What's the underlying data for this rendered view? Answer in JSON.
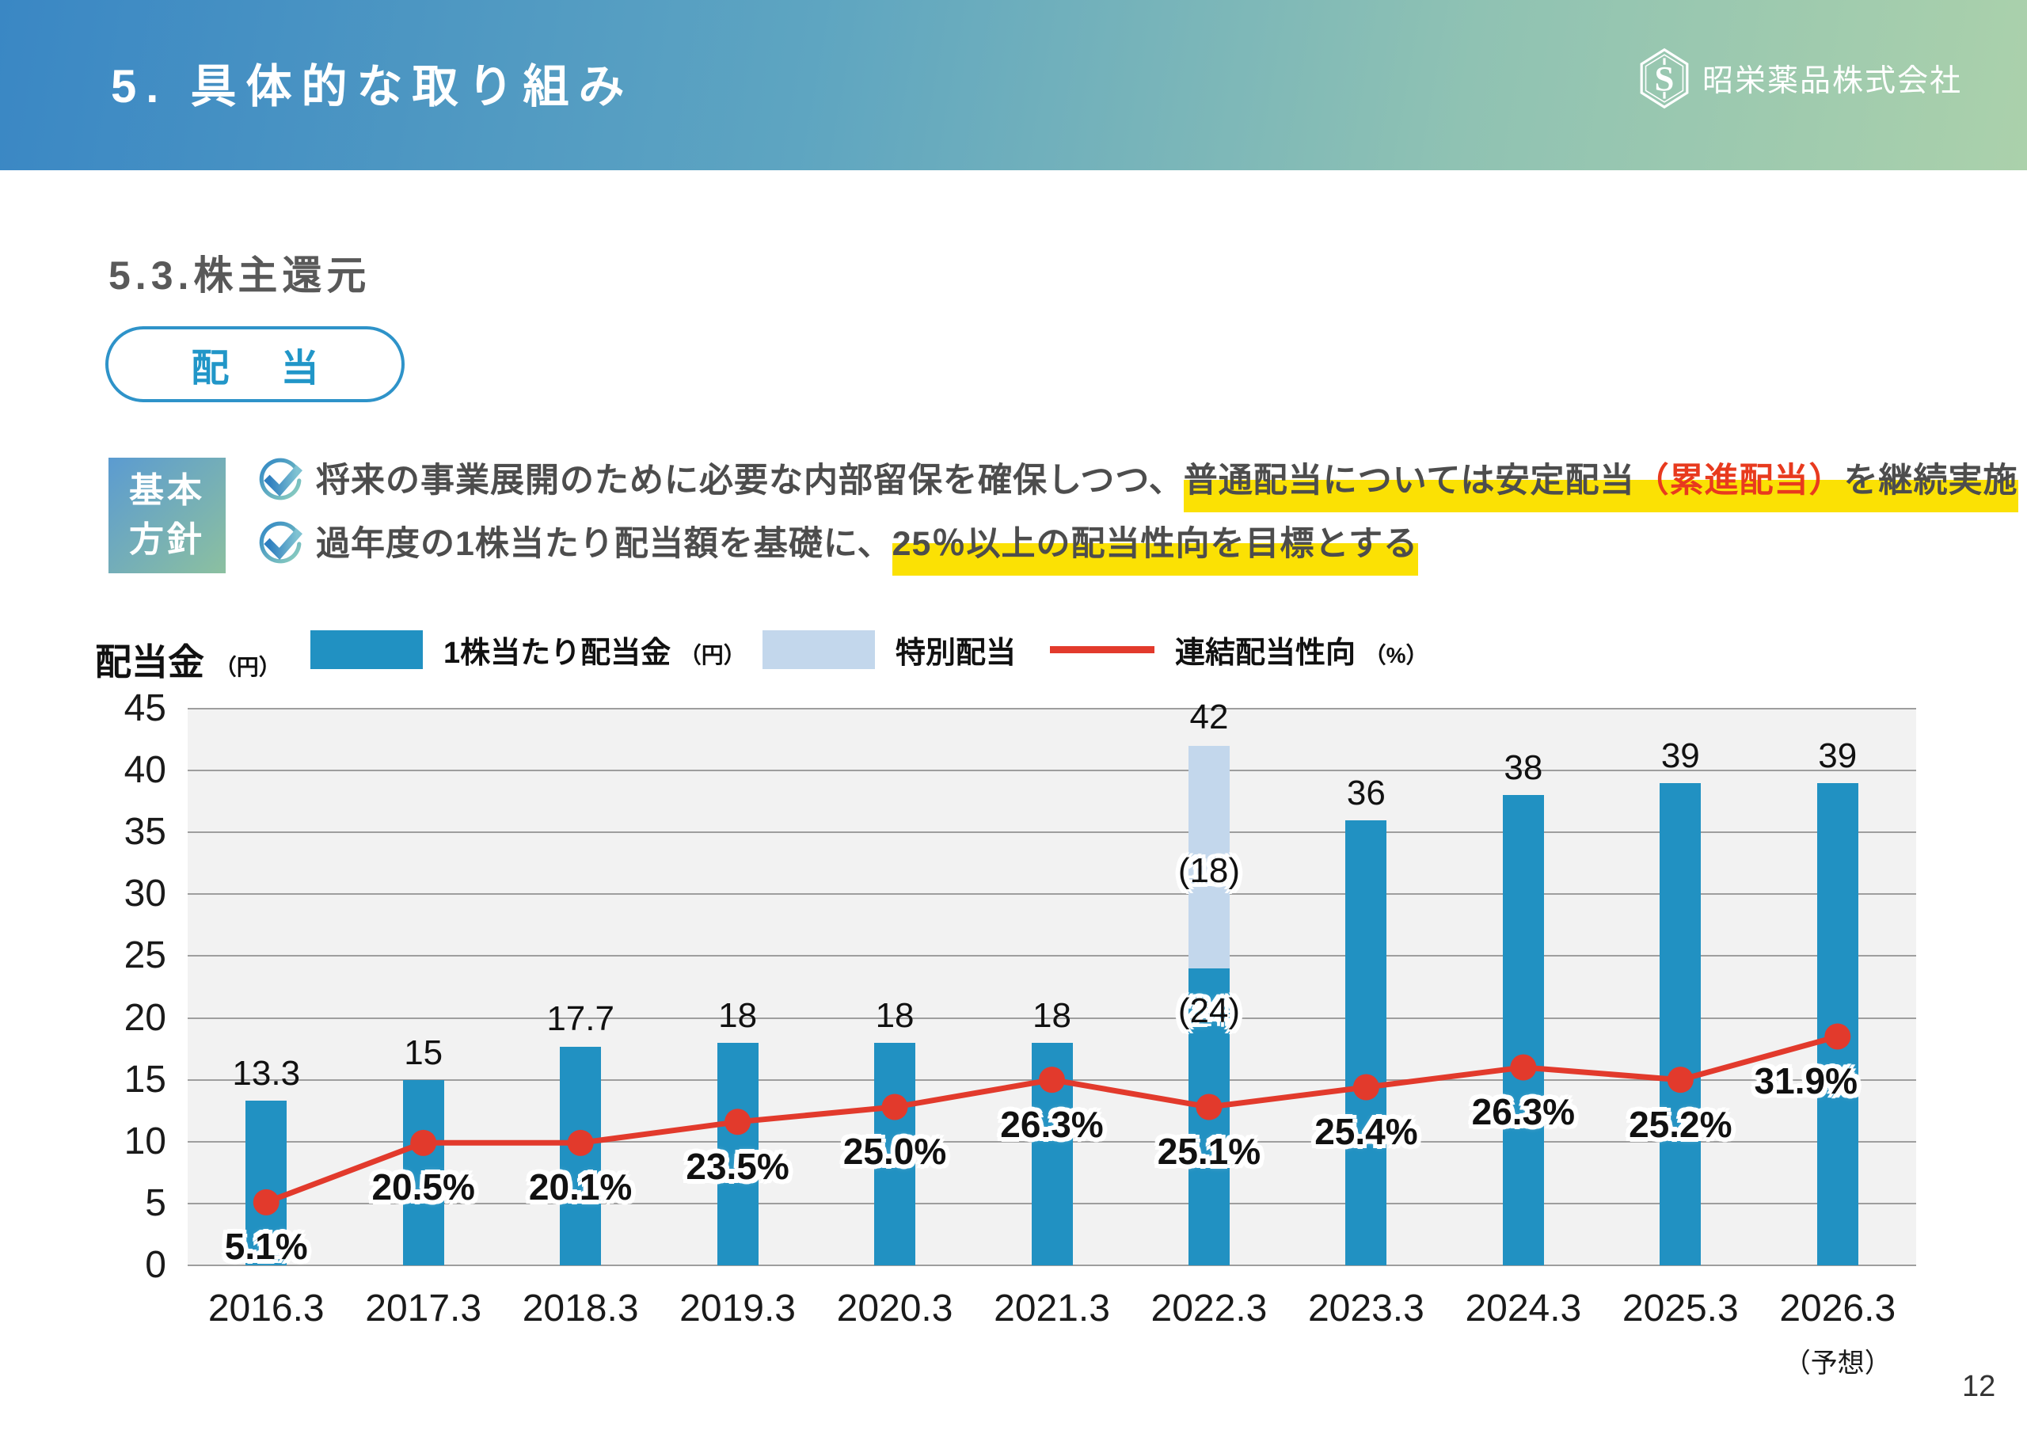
{
  "header": {
    "title": "5. 具体的な取り組み",
    "company": "昭栄薬品株式会社"
  },
  "section": {
    "title": "5.3.株主還元",
    "badge_label": "配 当"
  },
  "policy": {
    "box_line1": "基本",
    "box_line2": "方針",
    "items": [
      {
        "pre": "将来の事業展開のために必要な内部留保を確保しつつ、",
        "highlight_before": "普通配当については安定配当",
        "highlight_red": "（累進配当）",
        "highlight_after": "を継続実施"
      },
      {
        "pre": "過年度の1株当たり配当額を基礎に、",
        "highlight_before": "25％以上の配当性向を目標とする",
        "highlight_red": "",
        "highlight_after": ""
      }
    ]
  },
  "legend": {
    "caption": "配当金",
    "caption_unit": "（円）",
    "items": [
      {
        "label": "1株当たり配当金",
        "unit": "（円）",
        "color": "#2191c2",
        "swatch": "rect"
      },
      {
        "label": "特別配当",
        "unit": "",
        "color": "#c3d7ec",
        "swatch": "rect"
      },
      {
        "label": "連結配当性向",
        "unit": "（%）",
        "color": "#e23a2c",
        "swatch": "line"
      }
    ]
  },
  "chart_data": {
    "type": "bar+line",
    "title": "配当金（円）",
    "categories": [
      "2016.3",
      "2017.3",
      "2018.3",
      "2019.3",
      "2020.3",
      "2021.3",
      "2022.3",
      "2023.3",
      "2024.3",
      "2025.3",
      "2026.3"
    ],
    "forecast_note": {
      "index": 10,
      "text": "（予想）"
    },
    "ylim": [
      0,
      45
    ],
    "yticks": [
      0,
      5,
      10,
      15,
      20,
      25,
      30,
      35,
      40,
      45
    ],
    "grid": true,
    "plot_bg": "#f2f2f2",
    "grid_color": "#9e9e9e",
    "series": [
      {
        "name": "1株当たり配当金（円）",
        "type": "bar",
        "color": "#2191c2",
        "values": [
          13.3,
          15,
          17.7,
          18,
          18,
          18,
          24,
          36,
          38,
          39,
          39
        ],
        "labels": [
          "13.3",
          "15",
          "17.7",
          "18",
          "18",
          "18",
          "(24)",
          "36",
          "38",
          "39",
          "39"
        ]
      },
      {
        "name": "特別配当",
        "type": "bar-stacked",
        "color": "#c3d7ec",
        "values": [
          0,
          0,
          0,
          0,
          0,
          0,
          18,
          0,
          0,
          0,
          0
        ],
        "labels": [
          "",
          "",
          "",
          "",
          "",
          "",
          "(18)",
          "",
          "",
          "",
          ""
        ]
      },
      {
        "name": "連結配当性向（%）",
        "type": "line",
        "color": "#e23a2c",
        "values": [
          5.1,
          20.5,
          20.1,
          23.5,
          25.0,
          26.3,
          25.1,
          25.4,
          26.3,
          25.2,
          31.9
        ],
        "labels": [
          "5.1%",
          "20.5%",
          "20.1%",
          "23.5%",
          "25.0%",
          "26.3%",
          "25.1%",
          "25.4%",
          "26.3%",
          "25.2%",
          "31.9%"
        ],
        "plot_y_left_axis": [
          5.1,
          9.9,
          9.9,
          11.6,
          12.8,
          15.0,
          12.8,
          14.4,
          16.0,
          15.0,
          18.5
        ],
        "label_dx": [
          0,
          0,
          0,
          0,
          0,
          0,
          0,
          0,
          0,
          0,
          -40
        ]
      }
    ],
    "stack_total_label": {
      "index": 6,
      "text": "42"
    }
  },
  "colors": {
    "accent_blue": "#2196c8",
    "bar_blue": "#2191c2",
    "special_blue": "#c3d7ec",
    "line_red": "#e23a2c",
    "highlight_yellow": "#fbe104",
    "red_text": "#e83a1e",
    "section_gray": "#595959"
  },
  "page_number": "12"
}
